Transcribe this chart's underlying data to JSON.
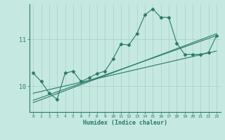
{
  "title": "",
  "xlabel": "Humidex (Indice chaleur)",
  "bg_color": "#c5e8e0",
  "line_color": "#2a7a6a",
  "grid_color": "#a8d0c8",
  "xlim": [
    -0.5,
    23.5
  ],
  "ylim": [
    9.45,
    11.75
  ],
  "yticks": [
    10,
    11
  ],
  "xticks": [
    0,
    1,
    2,
    3,
    4,
    5,
    6,
    7,
    8,
    9,
    10,
    11,
    12,
    13,
    14,
    15,
    16,
    17,
    18,
    19,
    20,
    21,
    22,
    23
  ],
  "line1_x": [
    0,
    1,
    2,
    3,
    4,
    5,
    6,
    7,
    8,
    9,
    10,
    11,
    12,
    13,
    14,
    15,
    16,
    17,
    18,
    19,
    20,
    21,
    22,
    23
  ],
  "line1_y": [
    10.28,
    10.1,
    9.85,
    9.72,
    10.28,
    10.32,
    10.1,
    10.18,
    10.27,
    10.32,
    10.58,
    10.9,
    10.88,
    11.12,
    11.52,
    11.65,
    11.47,
    11.47,
    10.92,
    10.68,
    10.68,
    10.68,
    10.72,
    11.08
  ],
  "line2_x": [
    0,
    23
  ],
  "line2_y": [
    9.85,
    10.75
  ],
  "line3_x": [
    0,
    23
  ],
  "line3_y": [
    9.7,
    11.08
  ],
  "line4_x": [
    0,
    23
  ],
  "line4_y": [
    9.65,
    11.12
  ]
}
